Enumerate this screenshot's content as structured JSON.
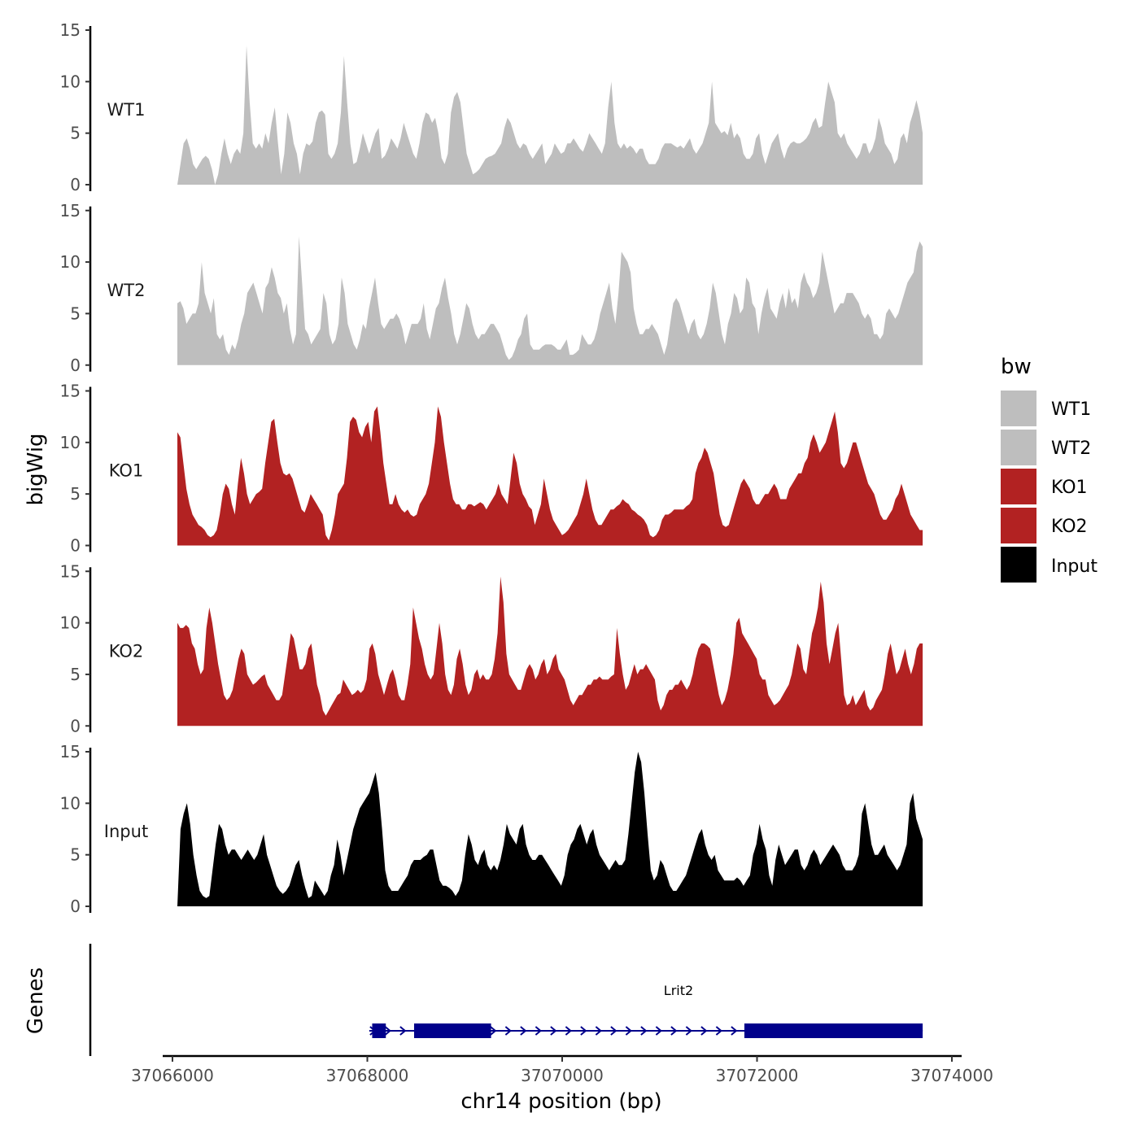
{
  "chart_data": {
    "type": "area",
    "ylabel": "bigWig",
    "xlabel": "chr14 position (bp)",
    "ylim": [
      0,
      15
    ],
    "y_ticks": [
      0,
      5,
      10,
      15
    ],
    "x_range": [
      37065900,
      37074100
    ],
    "x_ticks": [
      37066000,
      37068000,
      37070000,
      37072000,
      37074000
    ],
    "x_tick_labels": [
      "37066000",
      "37068000",
      "37070000",
      "37072000",
      "37074000"
    ],
    "track_x_start": 37066050,
    "track_x_end": 37073700,
    "legend": {
      "title": "bw",
      "entries": [
        {
          "label": "WT1",
          "color": "#bebebe"
        },
        {
          "label": "WT2",
          "color": "#bebebe"
        },
        {
          "label": "KO1",
          "color": "#b22222"
        },
        {
          "label": "KO2",
          "color": "#b22222"
        },
        {
          "label": "Input",
          "color": "#000000"
        }
      ]
    },
    "series": [
      {
        "name": "WT1",
        "color": "#bebebe",
        "values": [
          0,
          2,
          4,
          4.5,
          3.5,
          2,
          1.5,
          2,
          2.5,
          2.8,
          2.5,
          1.5,
          0,
          1,
          3,
          4.5,
          3,
          2,
          3,
          3.5,
          3,
          5,
          13.5,
          8,
          4,
          3.5,
          4,
          3.5,
          5,
          4,
          6,
          7.5,
          4,
          1,
          3,
          7,
          6,
          4,
          3,
          1,
          3,
          4,
          3.8,
          4.2,
          6,
          7,
          7.2,
          6.8,
          3,
          2.5,
          3,
          4,
          7,
          12.5,
          8,
          4,
          2,
          2.2,
          3.5,
          5,
          4,
          3,
          4,
          5,
          5.5,
          2.5,
          2.8,
          3.5,
          4.5,
          4,
          3.5,
          4.5,
          6,
          5,
          4,
          3,
          2.5,
          4,
          6,
          7,
          6.8,
          6,
          6.5,
          5,
          2.6,
          2,
          3,
          7,
          8.5,
          9,
          8,
          5.5,
          3,
          2,
          1,
          1.2,
          1.5,
          2,
          2.5,
          2.7,
          2.8,
          3,
          3.5,
          4,
          5.5,
          6.5,
          6,
          5,
          4,
          3.5,
          4,
          3.8,
          3,
          2.5,
          3,
          3.5,
          4,
          2,
          2.5,
          3,
          4,
          3.5,
          3,
          3.2,
          4,
          4,
          4.5,
          4,
          3.5,
          3.2,
          4,
          5,
          4.5,
          4,
          3.5,
          3,
          4,
          7.5,
          10,
          6,
          4,
          3.5,
          4,
          3.5,
          3.8,
          3.5,
          3,
          3.5,
          3.5,
          2.5,
          2,
          2,
          2,
          2.5,
          3.5,
          4,
          4,
          4,
          3.8,
          3.6,
          3.8,
          3.5,
          4,
          4.5,
          3.5,
          3,
          3.5,
          4,
          5,
          6,
          10,
          6,
          5.5,
          5,
          5.2,
          4.8,
          6,
          4.5,
          5,
          4.5,
          3,
          2.5,
          2.5,
          3,
          4.5,
          5,
          3,
          2,
          3,
          4,
          4.5,
          5,
          3.5,
          2.5,
          3.5,
          4,
          4.2,
          4,
          4,
          4.2,
          4.5,
          5,
          6,
          6.5,
          5.5,
          5.7,
          8,
          10,
          9,
          8,
          5,
          4.5,
          5,
          4,
          3.5,
          3,
          2.5,
          3,
          4,
          4,
          3,
          3.5,
          4.5,
          6.5,
          5.5,
          4,
          3.5,
          3,
          2,
          2.5,
          4.5,
          5,
          4,
          6,
          7,
          8.2,
          7,
          5
        ]
      },
      {
        "name": "WT2",
        "color": "#bebebe",
        "values": [
          6,
          6.2,
          5.5,
          4,
          4.5,
          5,
          5,
          6,
          10,
          7,
          6,
          5,
          6.5,
          3,
          2.5,
          3,
          1.5,
          1,
          2,
          1.5,
          2.5,
          4,
          5,
          7,
          7.5,
          8,
          7,
          6,
          5,
          7.5,
          8,
          9.5,
          8.5,
          7,
          6.5,
          5,
          6,
          3.5,
          2,
          3,
          12.5,
          8,
          3.5,
          3,
          2,
          2.5,
          3,
          3.5,
          7,
          6,
          3,
          2,
          2.5,
          4,
          8.5,
          7,
          4,
          3,
          2,
          1.5,
          2.5,
          4,
          3.5,
          5.5,
          7,
          8.5,
          6,
          4,
          3.5,
          4,
          4.5,
          4.5,
          5,
          4.5,
          3.5,
          2,
          3,
          4,
          4,
          4,
          4.5,
          6,
          3.5,
          2.5,
          4,
          5.5,
          6,
          7.5,
          8.5,
          6.5,
          5,
          3,
          2,
          3,
          4.5,
          6,
          5.5,
          4,
          3,
          2.5,
          3,
          3,
          3.5,
          4,
          4,
          3.5,
          3,
          2,
          1,
          0.5,
          0.8,
          1.5,
          2.5,
          3,
          4.5,
          5,
          2,
          1.5,
          1.5,
          1.5,
          1.8,
          2,
          2,
          2,
          1.8,
          1.5,
          1.5,
          2,
          2.5,
          1,
          1,
          1.2,
          1.5,
          3,
          2.5,
          2,
          2,
          2.5,
          3.5,
          5,
          6,
          7,
          8,
          5.5,
          4,
          7,
          11,
          10.5,
          10,
          9,
          5.5,
          4,
          3,
          3,
          3.5,
          3.5,
          4,
          3.5,
          3,
          2,
          1,
          2,
          4,
          6,
          6.5,
          6,
          5,
          4,
          3,
          4,
          4.5,
          3,
          2.5,
          3,
          4,
          5.5,
          8,
          7,
          5,
          3,
          2,
          4,
          5,
          7,
          6.5,
          5,
          5.5,
          8.5,
          8,
          6,
          5.5,
          3,
          5,
          6.5,
          7.5,
          5.5,
          5,
          4.5,
          6,
          7,
          5.5,
          7.5,
          6,
          6.5,
          5.5,
          8,
          9,
          8,
          7.5,
          6.5,
          7,
          8,
          11,
          9.5,
          8,
          6.5,
          5,
          5.5,
          6,
          6,
          7,
          7,
          7,
          6.5,
          6,
          5,
          4.5,
          5,
          4.5,
          3,
          3,
          2.5,
          3,
          5,
          5.5,
          5,
          4.5,
          5,
          6,
          7,
          8,
          8.5,
          9,
          11,
          12,
          11.5
        ]
      },
      {
        "name": "KO1",
        "color": "#b22222",
        "values": [
          11,
          10.5,
          8,
          5.5,
          4,
          3,
          2.5,
          2,
          1.8,
          1.5,
          1,
          0.8,
          1,
          1.5,
          3,
          5,
          6,
          5.5,
          4,
          3,
          6,
          8.5,
          7,
          5,
          4,
          4.5,
          5,
          5.2,
          5.5,
          8,
          10,
          12,
          12.3,
          10,
          8,
          7,
          6.8,
          7,
          6.5,
          5.5,
          4.5,
          3.5,
          3.2,
          4,
          5,
          4.5,
          4,
          3.5,
          3,
          1,
          0.5,
          1.5,
          3,
          5,
          5.5,
          6,
          8.5,
          12,
          12.5,
          12.2,
          11,
          10.5,
          11.5,
          12,
          10,
          13,
          13.5,
          11,
          8,
          6,
          4,
          4,
          5,
          4,
          3.5,
          3.2,
          3.5,
          3,
          2.8,
          3,
          4,
          4.5,
          5,
          6,
          8,
          10,
          13.5,
          12.5,
          10,
          8,
          6,
          4.5,
          4,
          4,
          3.5,
          3.5,
          4,
          4,
          3.8,
          4,
          4.2,
          4,
          3.5,
          4,
          4.5,
          5,
          6,
          5,
          4.5,
          4,
          6.5,
          9,
          8,
          6,
          5,
          4.5,
          3.8,
          3.5,
          2,
          3,
          4,
          6.5,
          5,
          3.5,
          2.5,
          2,
          1.5,
          1,
          1.2,
          1.5,
          2,
          2.5,
          3,
          4,
          5,
          6.5,
          5,
          3.5,
          2.5,
          2,
          2,
          2.5,
          3,
          3.5,
          3.5,
          3.8,
          4,
          4.5,
          4.2,
          4,
          3.5,
          3.3,
          3,
          2.8,
          2.5,
          2,
          1,
          0.8,
          1,
          1.5,
          2.5,
          3,
          3,
          3.2,
          3.5,
          3.5,
          3.5,
          3.5,
          3.8,
          4,
          4.5,
          7,
          8,
          8.5,
          9.5,
          9,
          8,
          7,
          5,
          3,
          2,
          1.8,
          2,
          3,
          4,
          5,
          6,
          6.5,
          6,
          5.5,
          4.5,
          4,
          4,
          4.5,
          5,
          5,
          5.5,
          6,
          5.5,
          4.5,
          4.5,
          4.5,
          5.5,
          6,
          6.5,
          7,
          7,
          8,
          8.5,
          10,
          10.8,
          10,
          9,
          9.5,
          10,
          11,
          12,
          13,
          11,
          8,
          7.5,
          8,
          9,
          10,
          10,
          9,
          8,
          7,
          6,
          5.5,
          5,
          4,
          3,
          2.5,
          2.5,
          3,
          3.5,
          4.5,
          5,
          6,
          5,
          4,
          3,
          2.5,
          2,
          1.5,
          1.5
        ]
      },
      {
        "name": "KO2",
        "color": "#b22222",
        "values": [
          10,
          9.5,
          9.5,
          9.8,
          9.5,
          8,
          7.5,
          6,
          5,
          5.5,
          9.5,
          11.5,
          10,
          8,
          6,
          4.5,
          3,
          2.5,
          2.8,
          3.5,
          5,
          6.5,
          7.5,
          7,
          5,
          4.5,
          4,
          4.2,
          4.5,
          4.8,
          5,
          4,
          3.5,
          3,
          2.5,
          2.5,
          3,
          5,
          7,
          9,
          8.5,
          7,
          5.5,
          5.5,
          6,
          7.5,
          8,
          6,
          4,
          3,
          1.5,
          1,
          1.5,
          2,
          2.5,
          3,
          3.2,
          4.5,
          4,
          3.5,
          3,
          3.2,
          3.5,
          3.2,
          3.5,
          4.5,
          7.5,
          8,
          7,
          5,
          4,
          3,
          4,
          5,
          5.5,
          4.5,
          3,
          2.5,
          2.5,
          4,
          6,
          11.5,
          10,
          8.5,
          7.5,
          6,
          5,
          4.5,
          5,
          7.5,
          10,
          8,
          5,
          3.5,
          3,
          4,
          6.5,
          7.5,
          6,
          4,
          3,
          3.5,
          5,
          5.5,
          4.5,
          5,
          4.5,
          4.5,
          5,
          6.5,
          9,
          14.5,
          12,
          7,
          5,
          4.5,
          4,
          3.5,
          3.5,
          4.5,
          5.5,
          6,
          5.5,
          4.5,
          5,
          6,
          6.5,
          5,
          5.5,
          6.5,
          7,
          5.5,
          5,
          4.5,
          3.5,
          2.5,
          2,
          2.5,
          3,
          3,
          3.5,
          4,
          4,
          4.5,
          4.5,
          4.8,
          4.5,
          4.5,
          4.5,
          4.8,
          5,
          9.5,
          7,
          5,
          3.5,
          4,
          5,
          6,
          5,
          5.5,
          5.5,
          6,
          5.5,
          5,
          4.5,
          2.5,
          1.5,
          2,
          3,
          3.5,
          3.5,
          4,
          4,
          4.5,
          4,
          3.5,
          4,
          5,
          6.5,
          7.5,
          8,
          8,
          7.8,
          7.5,
          6,
          4.5,
          3,
          2,
          2.5,
          3.5,
          5,
          7,
          10,
          10.5,
          9,
          8.5,
          8,
          7.5,
          7,
          6.5,
          5,
          4.5,
          4.5,
          3,
          2.5,
          2,
          2.2,
          2.5,
          3,
          3.5,
          4,
          5,
          6.5,
          8,
          7.5,
          5.5,
          5,
          7,
          9,
          10,
          11.5,
          14,
          12,
          8,
          6,
          7.5,
          9,
          10,
          6.5,
          3,
          2,
          2.2,
          3,
          2,
          2.5,
          3,
          3.5,
          2,
          1.5,
          1.8,
          2.5,
          3,
          3.5,
          5,
          7,
          8,
          6.5,
          5,
          5.5,
          6.5,
          7.5,
          6,
          5,
          6,
          7.5,
          8,
          8
        ]
      },
      {
        "name": "Input",
        "color": "#000000",
        "values": [
          0,
          7.5,
          9,
          10,
          8,
          5,
          3,
          1.5,
          1,
          0.8,
          1,
          3.5,
          6,
          8,
          7.5,
          6,
          5,
          5.5,
          5.5,
          5,
          4.5,
          5,
          5.5,
          5,
          4.5,
          5,
          6,
          7,
          5,
          4,
          3,
          2,
          1.5,
          1.2,
          1.5,
          2,
          3,
          4,
          4.5,
          3,
          1.8,
          0.8,
          1,
          2.5,
          2,
          1.5,
          1,
          1.5,
          3,
          4,
          6.5,
          5,
          3,
          4.5,
          6,
          7.5,
          8.5,
          9.5,
          10,
          10.5,
          11,
          12,
          13,
          11,
          7.5,
          3.5,
          2,
          1.5,
          1.5,
          1.5,
          2,
          2.5,
          3,
          4,
          4.5,
          4.5,
          4.5,
          4.8,
          5,
          5.5,
          5.5,
          4,
          2.5,
          2,
          2,
          1.8,
          1.5,
          1,
          1.5,
          2.5,
          5,
          7,
          6,
          4.5,
          4,
          5,
          5.5,
          4,
          3.5,
          4,
          3.5,
          4.5,
          6,
          8,
          7,
          6.5,
          6,
          7.5,
          8,
          6,
          5,
          4.5,
          4.5,
          5,
          5,
          4.5,
          4,
          3.5,
          3,
          2.5,
          2,
          3,
          5,
          6,
          6.5,
          7.5,
          8,
          7,
          6,
          7,
          7.5,
          6,
          5,
          4.5,
          4,
          3.5,
          4,
          4.5,
          4,
          4,
          4.5,
          7,
          10,
          13,
          15,
          14,
          11,
          7,
          3.5,
          2.5,
          3,
          4.5,
          4,
          3,
          2,
          1.5,
          1.5,
          2,
          2.5,
          3,
          4,
          5,
          6,
          7,
          7.5,
          6,
          5,
          4.5,
          5,
          3.5,
          3,
          2.5,
          2.5,
          2.5,
          2.5,
          2.8,
          2.5,
          2,
          2.5,
          3,
          5,
          6,
          8,
          6.5,
          5.5,
          3,
          2,
          4.5,
          6,
          5,
          4,
          4.5,
          5,
          5.5,
          5.5,
          4,
          3.5,
          4,
          5,
          5.5,
          5,
          4,
          4.5,
          5,
          5.5,
          6,
          5.5,
          5,
          4,
          3.5,
          3.5,
          3.5,
          4,
          5,
          9,
          10,
          8,
          6,
          5,
          5,
          5.5,
          6,
          5,
          4.5,
          4,
          3.5,
          4,
          5,
          6,
          10,
          11,
          8.5,
          7.5,
          6.5
        ]
      }
    ],
    "genes": {
      "title": "Genes",
      "gene_name": "Lrit2",
      "color": "#00008b",
      "start": 37068020,
      "end": 37073700,
      "exons": [
        [
          37068050,
          37068190
        ],
        [
          37068480,
          37069270
        ],
        [
          37071870,
          37073700
        ]
      ]
    }
  }
}
